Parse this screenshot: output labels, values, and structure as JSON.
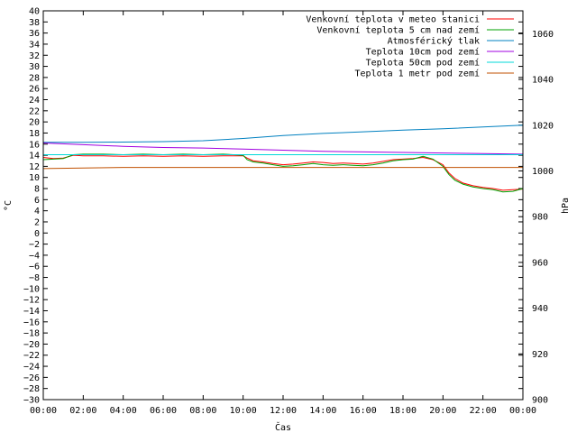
{
  "chart_data": {
    "type": "line",
    "xlabel": "Čas",
    "ylabel": "°C",
    "y2label": "hPa",
    "xlim": [
      0,
      24
    ],
    "ylim": [
      -30,
      40
    ],
    "y2lim": [
      900,
      1070
    ],
    "xticks": [
      "00:00",
      "02:00",
      "04:00",
      "06:00",
      "08:00",
      "10:00",
      "12:00",
      "14:00",
      "16:00",
      "18:00",
      "20:00",
      "22:00",
      "00:00"
    ],
    "yticks": [
      40,
      38,
      36,
      34,
      32,
      30,
      28,
      26,
      24,
      22,
      20,
      18,
      16,
      14,
      12,
      10,
      8,
      6,
      4,
      2,
      0,
      -2,
      -4,
      -6,
      -8,
      -10,
      -12,
      -14,
      -16,
      -18,
      -20,
      -22,
      -24,
      -26,
      -28,
      -30
    ],
    "y2ticks": [
      1060,
      1040,
      1020,
      1000,
      980,
      960,
      940,
      920,
      900
    ],
    "grid": false,
    "legend_position": "top-right",
    "series": [
      {
        "name": "Venkovní teplota v meteo stanici",
        "axis": "left",
        "color": "#ff0000",
        "x": [
          0,
          0.5,
          1,
          1.5,
          2,
          3,
          4,
          5,
          6,
          7,
          8,
          9,
          10,
          10.2,
          10.5,
          11,
          11.5,
          12,
          12.5,
          13,
          13.5,
          14,
          14.5,
          15,
          15.5,
          16,
          16.5,
          17,
          17.5,
          18,
          18.5,
          19,
          19.5,
          20,
          20.3,
          20.6,
          21,
          21.5,
          22,
          22.5,
          23,
          23.5,
          24
        ],
        "values": [
          13.6,
          13.4,
          13.5,
          14.0,
          13.9,
          13.9,
          13.8,
          13.9,
          13.8,
          13.9,
          13.8,
          13.9,
          13.9,
          13.5,
          13.0,
          12.8,
          12.5,
          12.3,
          12.4,
          12.6,
          12.8,
          12.7,
          12.5,
          12.6,
          12.5,
          12.4,
          12.6,
          12.9,
          13.2,
          13.3,
          13.4,
          13.6,
          13.2,
          12.3,
          10.8,
          9.8,
          9.0,
          8.5,
          8.2,
          8.0,
          7.7,
          7.8,
          7.9
        ]
      },
      {
        "name": "Venkovní teplota 5 cm nad zemí",
        "axis": "left",
        "color": "#00a000",
        "x": [
          0,
          0.5,
          1,
          1.5,
          2,
          3,
          4,
          5,
          6,
          7,
          8,
          9,
          10,
          10.2,
          10.5,
          11,
          11.5,
          12,
          12.5,
          13,
          13.5,
          14,
          14.5,
          15,
          15.5,
          16,
          16.5,
          17,
          17.5,
          18,
          18.5,
          19,
          19.5,
          20,
          20.3,
          20.6,
          21,
          21.5,
          22,
          22.5,
          23,
          23.5,
          24
        ],
        "values": [
          13.2,
          13.3,
          13.4,
          14.1,
          14.2,
          14.2,
          14.1,
          14.2,
          14.1,
          14.2,
          14.1,
          14.2,
          14.0,
          13.2,
          12.8,
          12.6,
          12.3,
          12.0,
          12.1,
          12.3,
          12.5,
          12.3,
          12.2,
          12.3,
          12.2,
          12.1,
          12.3,
          12.6,
          13.0,
          13.2,
          13.3,
          13.8,
          13.3,
          12.0,
          10.5,
          9.5,
          8.8,
          8.3,
          8.0,
          7.8,
          7.4,
          7.5,
          8.0
        ]
      },
      {
        "name": "Atmosférický tlak",
        "axis": "right",
        "color": "#0080c0",
        "x": [
          0,
          2,
          4,
          6,
          8,
          10,
          12,
          14,
          16,
          18,
          20,
          22,
          24
        ],
        "values": [
          1012.5,
          1012.5,
          1012.6,
          1012.8,
          1013.2,
          1014.2,
          1015.5,
          1016.4,
          1017.1,
          1017.8,
          1018.4,
          1019.2,
          1020.0
        ]
      },
      {
        "name": "Teplota 10cm pod zemí",
        "axis": "left",
        "color": "#a000e0",
        "x": [
          0,
          2,
          4,
          6,
          8,
          10,
          12,
          14,
          16,
          18,
          20,
          22,
          24
        ],
        "values": [
          16.2,
          15.9,
          15.6,
          15.4,
          15.3,
          15.1,
          14.9,
          14.7,
          14.6,
          14.5,
          14.4,
          14.3,
          14.2
        ]
      },
      {
        "name": "Teplota 50cm pod zemí",
        "axis": "left",
        "color": "#00d8d8",
        "x": [
          0,
          24
        ],
        "values": [
          14.1,
          14.1
        ]
      },
      {
        "name": "Teplota 1 metr pod zemí",
        "axis": "left",
        "color": "#c05000",
        "x": [
          0,
          2,
          4,
          24
        ],
        "values": [
          11.6,
          11.7,
          11.8,
          11.8
        ]
      }
    ]
  }
}
